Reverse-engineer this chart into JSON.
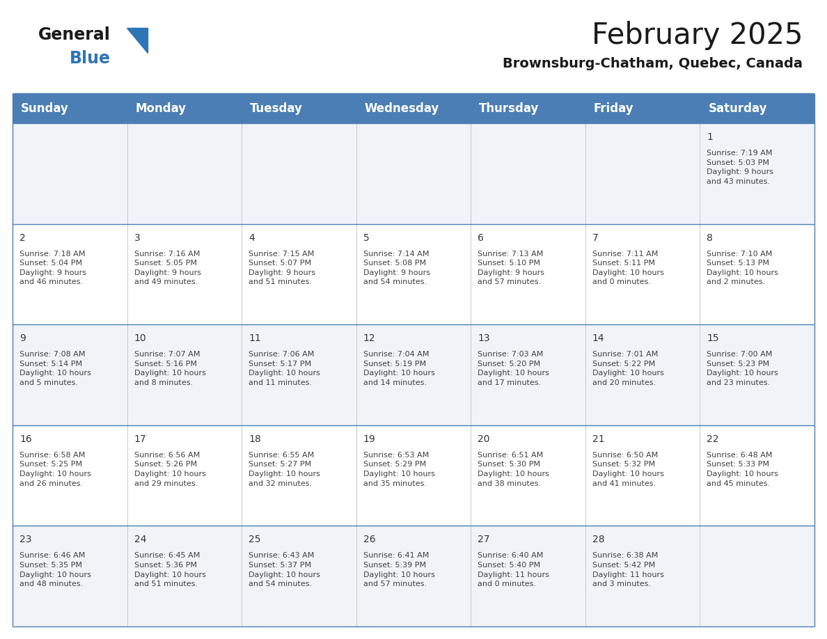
{
  "title": "February 2025",
  "subtitle": "Brownsburg-Chatham, Quebec, Canada",
  "days_of_week": [
    "Sunday",
    "Monday",
    "Tuesday",
    "Wednesday",
    "Thursday",
    "Friday",
    "Saturday"
  ],
  "header_bg": "#4a7eb5",
  "header_text": "#ffffff",
  "row_bg_even": "#f0f4f8",
  "row_bg_odd": "#ffffff",
  "border_color": "#4a7eb5",
  "grid_color": "#c0c0c0",
  "text_color": "#404040",
  "day_num_color": "#333333",
  "title_color": "#1a1a1a",
  "subtitle_color": "#1a1a1a",
  "logo_general_color": "#1a1a1a",
  "logo_blue_color": "#2e75b6",
  "logo_triangle_color": "#2e75b6",
  "calendar_data": [
    [
      {
        "day": null,
        "info": null
      },
      {
        "day": null,
        "info": null
      },
      {
        "day": null,
        "info": null
      },
      {
        "day": null,
        "info": null
      },
      {
        "day": null,
        "info": null
      },
      {
        "day": null,
        "info": null
      },
      {
        "day": 1,
        "info": "Sunrise: 7:19 AM\nSunset: 5:03 PM\nDaylight: 9 hours\nand 43 minutes."
      }
    ],
    [
      {
        "day": 2,
        "info": "Sunrise: 7:18 AM\nSunset: 5:04 PM\nDaylight: 9 hours\nand 46 minutes."
      },
      {
        "day": 3,
        "info": "Sunrise: 7:16 AM\nSunset: 5:05 PM\nDaylight: 9 hours\nand 49 minutes."
      },
      {
        "day": 4,
        "info": "Sunrise: 7:15 AM\nSunset: 5:07 PM\nDaylight: 9 hours\nand 51 minutes."
      },
      {
        "day": 5,
        "info": "Sunrise: 7:14 AM\nSunset: 5:08 PM\nDaylight: 9 hours\nand 54 minutes."
      },
      {
        "day": 6,
        "info": "Sunrise: 7:13 AM\nSunset: 5:10 PM\nDaylight: 9 hours\nand 57 minutes."
      },
      {
        "day": 7,
        "info": "Sunrise: 7:11 AM\nSunset: 5:11 PM\nDaylight: 10 hours\nand 0 minutes."
      },
      {
        "day": 8,
        "info": "Sunrise: 7:10 AM\nSunset: 5:13 PM\nDaylight: 10 hours\nand 2 minutes."
      }
    ],
    [
      {
        "day": 9,
        "info": "Sunrise: 7:08 AM\nSunset: 5:14 PM\nDaylight: 10 hours\nand 5 minutes."
      },
      {
        "day": 10,
        "info": "Sunrise: 7:07 AM\nSunset: 5:16 PM\nDaylight: 10 hours\nand 8 minutes."
      },
      {
        "day": 11,
        "info": "Sunrise: 7:06 AM\nSunset: 5:17 PM\nDaylight: 10 hours\nand 11 minutes."
      },
      {
        "day": 12,
        "info": "Sunrise: 7:04 AM\nSunset: 5:19 PM\nDaylight: 10 hours\nand 14 minutes."
      },
      {
        "day": 13,
        "info": "Sunrise: 7:03 AM\nSunset: 5:20 PM\nDaylight: 10 hours\nand 17 minutes."
      },
      {
        "day": 14,
        "info": "Sunrise: 7:01 AM\nSunset: 5:22 PM\nDaylight: 10 hours\nand 20 minutes."
      },
      {
        "day": 15,
        "info": "Sunrise: 7:00 AM\nSunset: 5:23 PM\nDaylight: 10 hours\nand 23 minutes."
      }
    ],
    [
      {
        "day": 16,
        "info": "Sunrise: 6:58 AM\nSunset: 5:25 PM\nDaylight: 10 hours\nand 26 minutes."
      },
      {
        "day": 17,
        "info": "Sunrise: 6:56 AM\nSunset: 5:26 PM\nDaylight: 10 hours\nand 29 minutes."
      },
      {
        "day": 18,
        "info": "Sunrise: 6:55 AM\nSunset: 5:27 PM\nDaylight: 10 hours\nand 32 minutes."
      },
      {
        "day": 19,
        "info": "Sunrise: 6:53 AM\nSunset: 5:29 PM\nDaylight: 10 hours\nand 35 minutes."
      },
      {
        "day": 20,
        "info": "Sunrise: 6:51 AM\nSunset: 5:30 PM\nDaylight: 10 hours\nand 38 minutes."
      },
      {
        "day": 21,
        "info": "Sunrise: 6:50 AM\nSunset: 5:32 PM\nDaylight: 10 hours\nand 41 minutes."
      },
      {
        "day": 22,
        "info": "Sunrise: 6:48 AM\nSunset: 5:33 PM\nDaylight: 10 hours\nand 45 minutes."
      }
    ],
    [
      {
        "day": 23,
        "info": "Sunrise: 6:46 AM\nSunset: 5:35 PM\nDaylight: 10 hours\nand 48 minutes."
      },
      {
        "day": 24,
        "info": "Sunrise: 6:45 AM\nSunset: 5:36 PM\nDaylight: 10 hours\nand 51 minutes."
      },
      {
        "day": 25,
        "info": "Sunrise: 6:43 AM\nSunset: 5:37 PM\nDaylight: 10 hours\nand 54 minutes."
      },
      {
        "day": 26,
        "info": "Sunrise: 6:41 AM\nSunset: 5:39 PM\nDaylight: 10 hours\nand 57 minutes."
      },
      {
        "day": 27,
        "info": "Sunrise: 6:40 AM\nSunset: 5:40 PM\nDaylight: 11 hours\nand 0 minutes."
      },
      {
        "day": 28,
        "info": "Sunrise: 6:38 AM\nSunset: 5:42 PM\nDaylight: 11 hours\nand 3 minutes."
      },
      {
        "day": null,
        "info": null
      }
    ]
  ],
  "header_fontsize": 12,
  "day_num_fontsize": 10,
  "info_fontsize": 8,
  "title_fontsize": 30,
  "subtitle_fontsize": 14,
  "logo_general_fontsize": 17,
  "logo_blue_fontsize": 17
}
